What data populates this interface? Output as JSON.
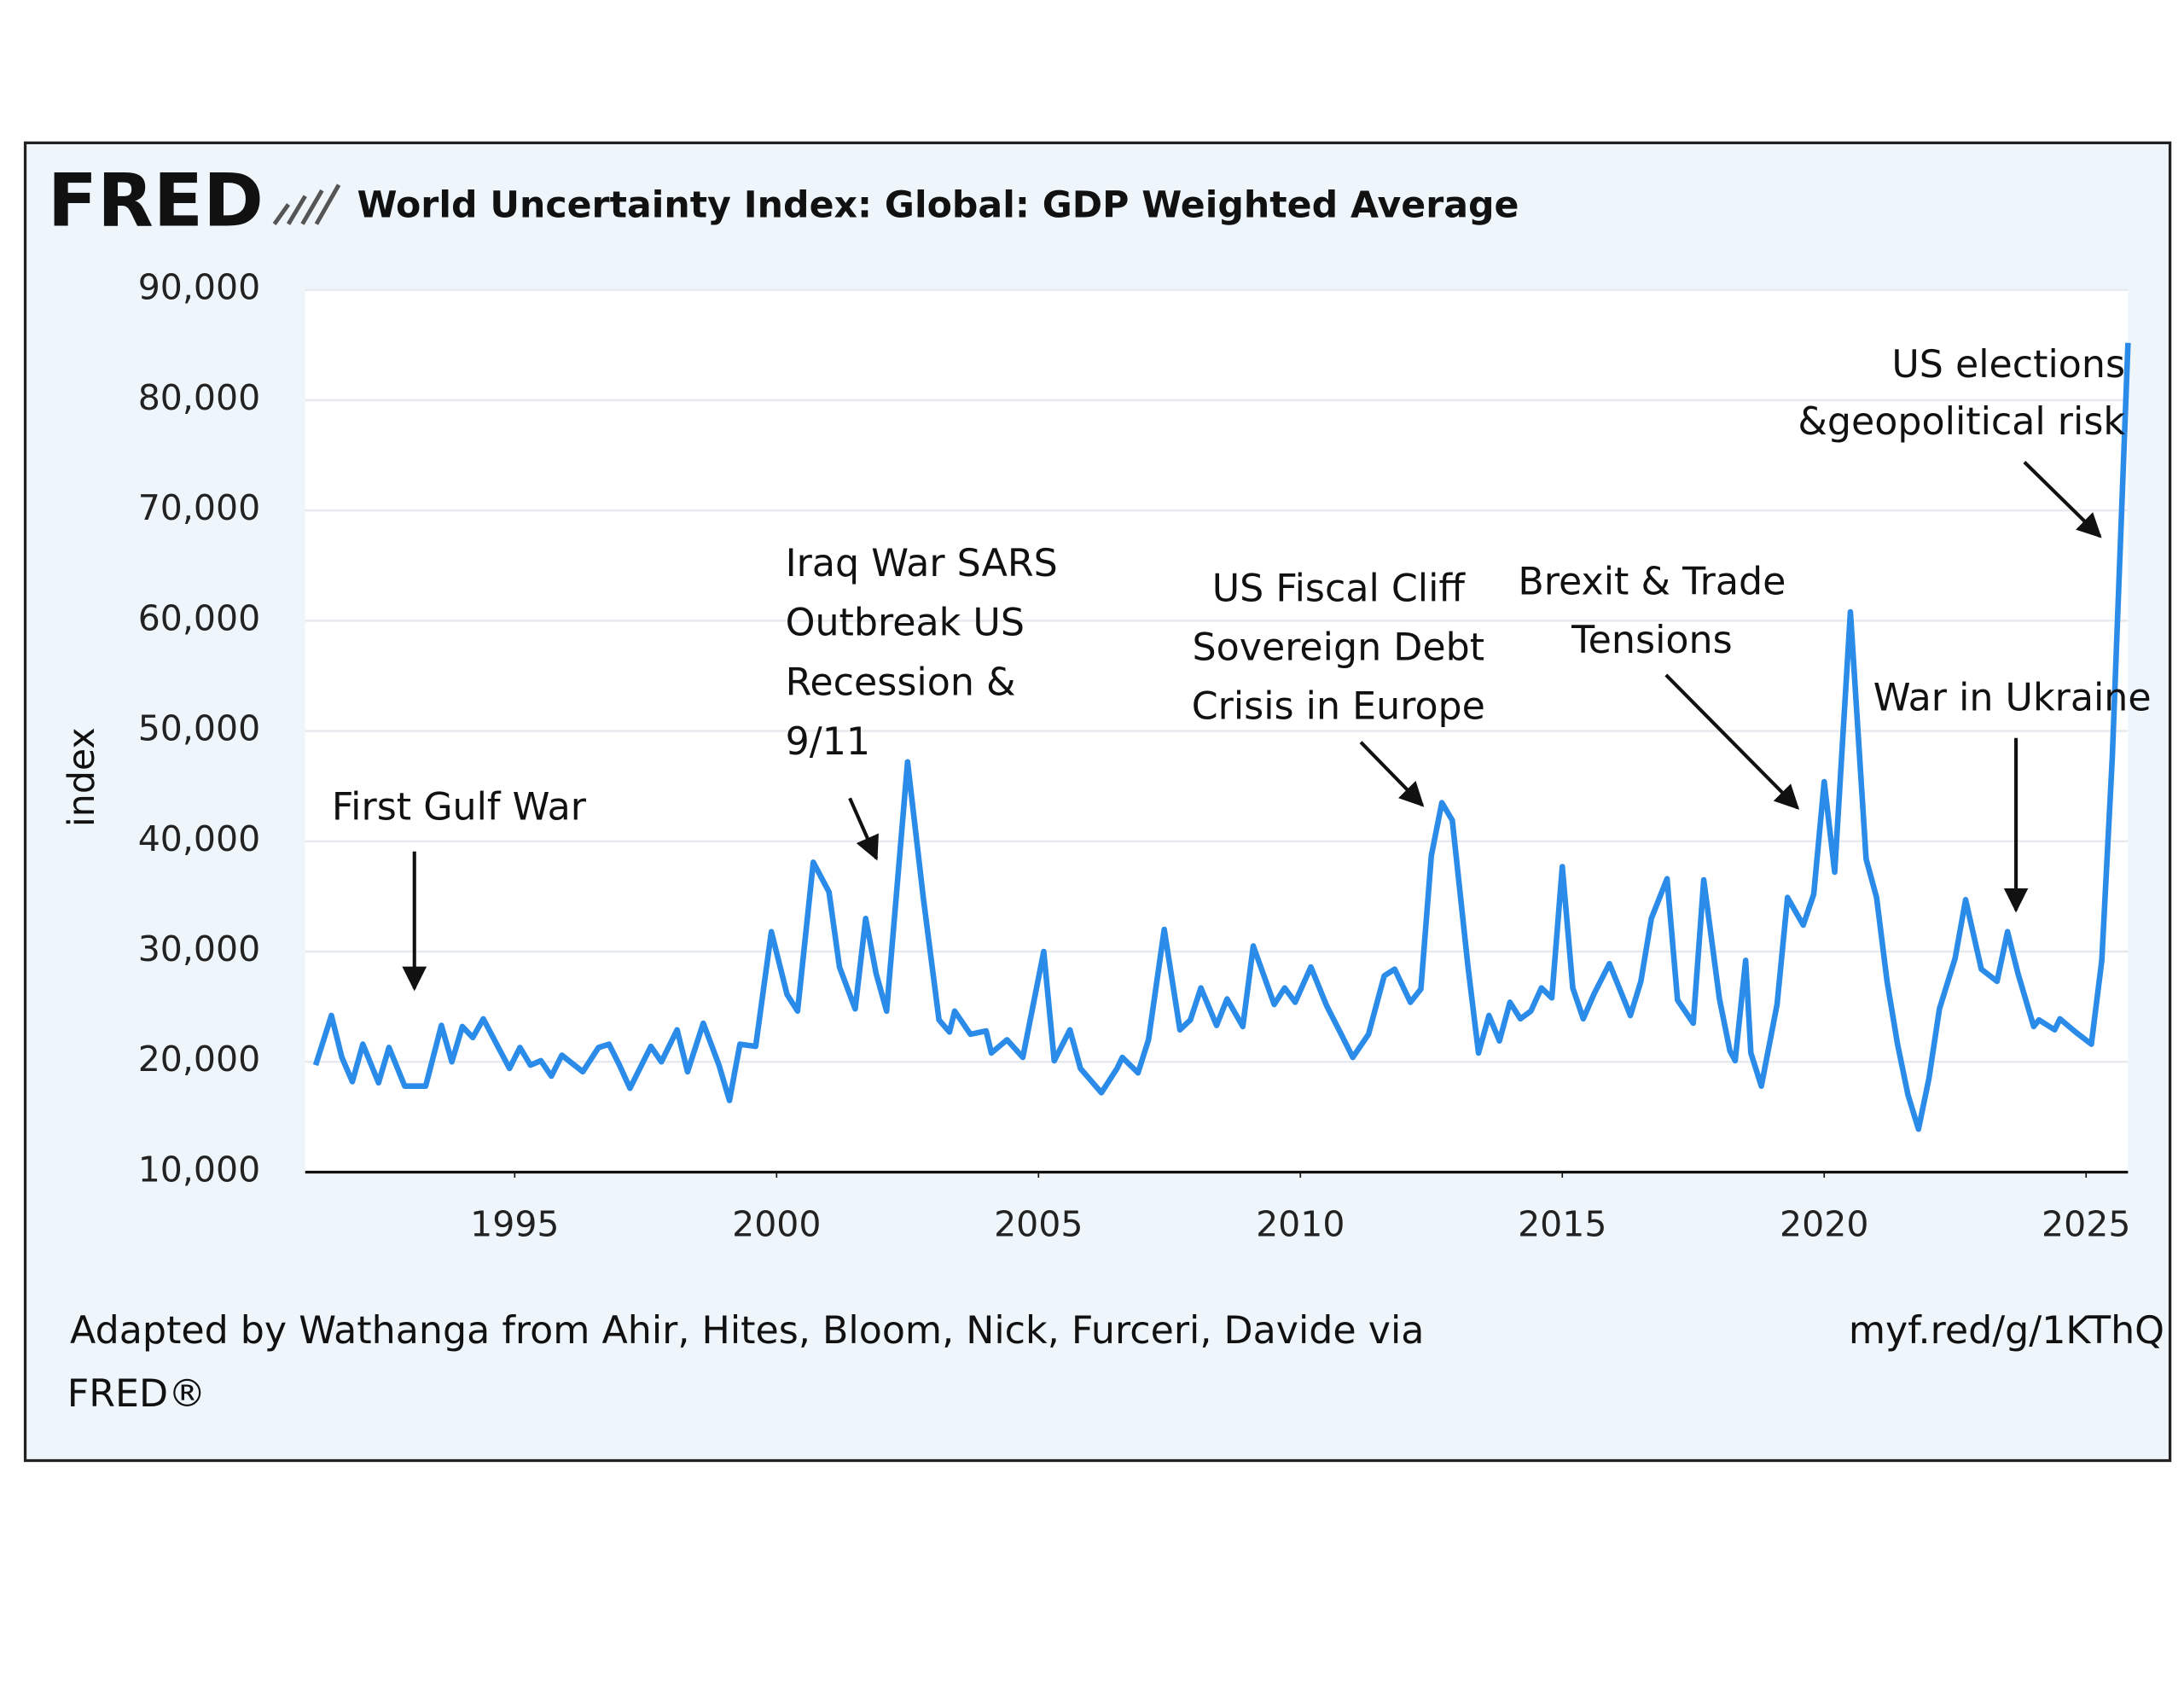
{
  "chart_data": {
    "type": "line",
    "logo": "FRED",
    "title": "World Uncertainty Index: Global: GDP Weighted Average",
    "y_label": "index",
    "source": "Adapted by Wathanga from Ahir, Hites, Bloom, Nick, Furceri, Davide via",
    "source_2": "FRED®",
    "link": "myf.red/g/1KThQ",
    "xlim": [
      1991,
      2025.8
    ],
    "xticks": [
      1995,
      2000,
      2005,
      2010,
      2015,
      2020,
      2025
    ],
    "ylim": [
      10000,
      90000
    ],
    "yticks": [
      {
        "value": 10000,
        "label": "10,000"
      },
      {
        "value": 20000,
        "label": "20,000"
      },
      {
        "value": 30000,
        "label": "30,000"
      },
      {
        "value": 40000,
        "label": "40,000"
      },
      {
        "value": 50000,
        "label": "50,000"
      },
      {
        "value": 60000,
        "label": "60,000"
      },
      {
        "value": 70000,
        "label": "70,000"
      },
      {
        "value": 80000,
        "label": "80,000"
      },
      {
        "value": 90000,
        "label": "90,000"
      }
    ],
    "grid": true,
    "series": [
      {
        "color": "#2b8be8",
        "x": [
          1991.2,
          1991.5,
          1991.7,
          1991.9,
          1992.1,
          1992.4,
          1992.6,
          1992.9,
          1993.3,
          1993.6,
          1993.8,
          1994.0,
          1994.2,
          1994.4,
          1994.9,
          1995.1,
          1995.3,
          1995.5,
          1995.7,
          1995.9,
          1996.3,
          1996.6,
          1996.8,
          1997.0,
          1997.2,
          1997.6,
          1997.8,
          1998.1,
          1998.3,
          1998.6,
          1998.9,
          1999.1,
          1999.3,
          1999.6,
          1999.9,
          2000.2,
          2000.4,
          2000.7,
          2001.0,
          2001.2,
          2001.5,
          2001.7,
          2001.9,
          2002.1,
          2002.5,
          2002.8,
          2003.1,
          2003.3,
          2003.4,
          2003.7,
          2004.0,
          2004.1,
          2004.4,
          2004.7,
          2004.9,
          2005.1,
          2005.3,
          2005.6,
          2005.8,
          2006.2,
          2006.5,
          2006.6,
          2006.9,
          2007.1,
          2007.4,
          2007.7,
          2007.9,
          2008.1,
          2008.4,
          2008.6,
          2008.9,
          2009.1,
          2009.5,
          2009.7,
          2009.9,
          2010.2,
          2010.5,
          2010.8,
          2011.0,
          2011.3,
          2011.6,
          2011.8,
          2012.1,
          2012.3,
          2012.5,
          2012.7,
          2012.9,
          2013.2,
          2013.4,
          2013.6,
          2013.8,
          2014.0,
          2014.2,
          2014.4,
          2014.6,
          2014.8,
          2015.0,
          2015.2,
          2015.4,
          2015.6,
          2015.9,
          2016.3,
          2016.5,
          2016.7,
          2017.0,
          2017.2,
          2017.5,
          2017.7,
          2018.0,
          2018.2,
          2018.3,
          2018.5,
          2018.6,
          2018.8,
          2019.1,
          2019.3,
          2019.6,
          2019.8,
          2020.0,
          2020.2,
          2020.5,
          2020.8,
          2021.0,
          2021.2,
          2021.4,
          2021.6,
          2021.8,
          2022.0,
          2022.2,
          2022.5,
          2022.7,
          2023.0,
          2023.3,
          2023.5,
          2023.7,
          2024.0,
          2024.1,
          2024.4,
          2024.5,
          2024.8,
          2025.1,
          2025.3,
          2025.5,
          2025.8
        ],
        "values": [
          19700,
          24200,
          20400,
          18200,
          21600,
          18100,
          21300,
          17800,
          17800,
          23300,
          20000,
          23200,
          22200,
          23900,
          19400,
          21300,
          19700,
          20100,
          18700,
          20600,
          19100,
          21300,
          21600,
          19700,
          17600,
          21400,
          20000,
          22900,
          19100,
          23500,
          19700,
          16500,
          21600,
          21400,
          31800,
          26100,
          24600,
          38100,
          35400,
          28600,
          24800,
          33000,
          28000,
          24600,
          47200,
          34900,
          23800,
          22700,
          24600,
          22500,
          22800,
          20800,
          22000,
          20400,
          25200,
          30000,
          20100,
          22900,
          19400,
          17200,
          19400,
          20400,
          19000,
          22000,
          32000,
          22900,
          23800,
          26700,
          23300,
          25700,
          23200,
          30500,
          25200,
          26700,
          25400,
          28600,
          25100,
          22300,
          20400,
          22500,
          27800,
          28400,
          25400,
          26600,
          38700,
          43500,
          41900,
          28600,
          20800,
          24200,
          21900,
          25400,
          23900,
          24600,
          26700,
          25800,
          37700,
          26700,
          23900,
          26100,
          28900,
          24200,
          27300,
          33000,
          36600,
          25600,
          23500,
          36500,
          25700,
          21000,
          20100,
          29200,
          20800,
          17800,
          25200,
          34900,
          32400,
          35200,
          45400,
          37200,
          60800,
          38400,
          34900,
          27300,
          21600,
          17000,
          13900,
          18500,
          24800,
          29400,
          34700,
          28400,
          27300,
          31800,
          28000,
          23200,
          23800,
          22900,
          23900,
          22700,
          21600,
          29200,
          47600,
          85200
        ]
      }
    ],
    "annotations": [
      {
        "text": [
          "First Gulf War"
        ]
      },
      {
        "text": [
          "Iraq War SARS",
          "Outbreak US",
          "Recession &",
          "9/11"
        ]
      },
      {
        "text": [
          "US Fiscal Cliff",
          "Sovereign Debt",
          "Crisis in Europe"
        ]
      },
      {
        "text": [
          "Brexit & Trade",
          "Tensions"
        ]
      },
      {
        "text": [
          "War in Ukraine"
        ]
      },
      {
        "text": [
          "US elections",
          "&geopolitical risk"
        ]
      }
    ]
  }
}
